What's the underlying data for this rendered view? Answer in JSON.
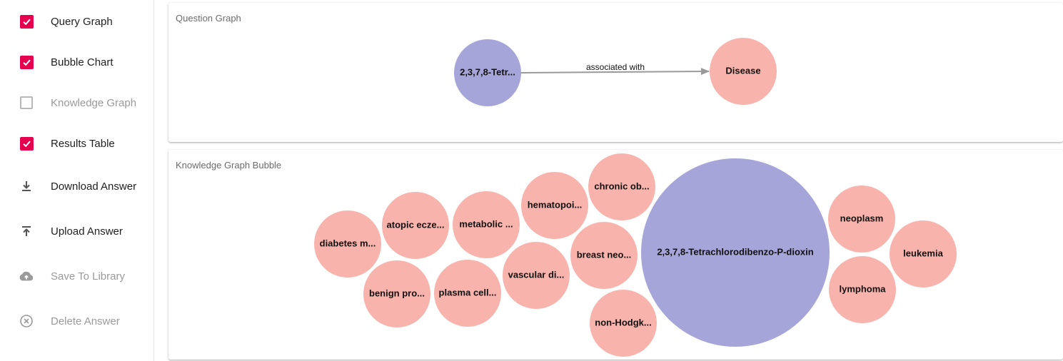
{
  "sidebar": {
    "items": [
      {
        "label": "Query Graph",
        "icon": "checkbox-checked",
        "checked": true
      },
      {
        "label": "Bubble Chart",
        "icon": "checkbox-checked",
        "checked": true
      },
      {
        "label": "Knowledge Graph",
        "icon": "checkbox-unchecked",
        "checked": false
      },
      {
        "label": "Results Table",
        "icon": "checkbox-checked",
        "checked": true
      },
      {
        "label": "Download Answer",
        "icon": "download-icon"
      },
      {
        "label": "Upload Answer",
        "icon": "upload-icon"
      },
      {
        "label": "Save To Library",
        "icon": "cloud-upload-icon"
      },
      {
        "label": "Delete Answer",
        "icon": "delete-circle-icon"
      }
    ]
  },
  "question_graph": {
    "title": "Question Graph",
    "source_node": {
      "label": "2,3,7,8-Tetr...",
      "color": "#a5a5d9"
    },
    "target_node": {
      "label": "Disease",
      "color": "#f9b3ad"
    },
    "edge_label": "associated with"
  },
  "bubble_panel": {
    "title": "Knowledge Graph Bubble",
    "bubbles": [
      {
        "label": "2,3,7,8-Tetrachlorodibenzo-P-dioxin",
        "kind": "chemical",
        "color": "#a5a5d9"
      },
      {
        "label": "diabetes m...",
        "kind": "disease",
        "color": "#f9b3ad"
      },
      {
        "label": "atopic ecze...",
        "kind": "disease",
        "color": "#f9b3ad"
      },
      {
        "label": "metabolic ...",
        "kind": "disease",
        "color": "#f9b3ad"
      },
      {
        "label": "hematopoi...",
        "kind": "disease",
        "color": "#f9b3ad"
      },
      {
        "label": "chronic ob...",
        "kind": "disease",
        "color": "#f9b3ad"
      },
      {
        "label": "benign pro...",
        "kind": "disease",
        "color": "#f9b3ad"
      },
      {
        "label": "plasma cell...",
        "kind": "disease",
        "color": "#f9b3ad"
      },
      {
        "label": "vascular di...",
        "kind": "disease",
        "color": "#f9b3ad"
      },
      {
        "label": "breast neo...",
        "kind": "disease",
        "color": "#f9b3ad"
      },
      {
        "label": "non-Hodgk...",
        "kind": "disease",
        "color": "#f9b3ad"
      },
      {
        "label": "neoplasm",
        "kind": "disease",
        "color": "#f9b3ad"
      },
      {
        "label": "leukemia",
        "kind": "disease",
        "color": "#f9b3ad"
      },
      {
        "label": "lymphoma",
        "kind": "disease",
        "color": "#f9b3ad"
      }
    ]
  },
  "colors": {
    "accent": "#e5004f",
    "chemical": "#a5a5d9",
    "disease": "#f9b3ad"
  }
}
